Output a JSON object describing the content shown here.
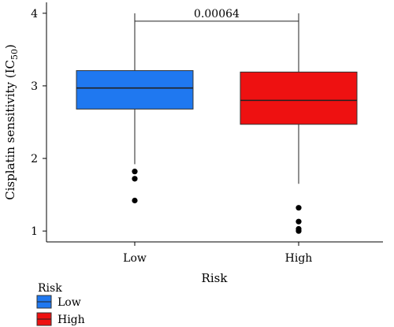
{
  "chart_data": {
    "type": "boxplot",
    "title": "",
    "xlabel": "Risk",
    "ylabel": "Cisplatin sensitivity (IC",
    "ylabel_subscript": "50",
    "ylabel_suffix": ")",
    "ylim": [
      0.85,
      4.15
    ],
    "yticks": [
      1,
      2,
      3,
      4
    ],
    "categories": [
      "Low",
      "High"
    ],
    "series": [
      {
        "name": "Low",
        "color": "#1f78f0",
        "q1": 2.68,
        "median": 2.97,
        "q3": 3.21,
        "whisker_low": 1.92,
        "whisker_high": 4.0,
        "outliers": [
          1.82,
          1.72,
          1.42
        ]
      },
      {
        "name": "High",
        "color": "#ee1111",
        "q1": 2.47,
        "median": 2.8,
        "q3": 3.19,
        "whisker_low": 1.65,
        "whisker_high": 4.0,
        "outliers": [
          1.32,
          1.13,
          1.03,
          1.0
        ]
      }
    ],
    "comparison": {
      "label": "0.00064",
      "bracket_y": 4.0
    },
    "legend": {
      "title": "Risk",
      "placement": "bottom-left",
      "items": [
        {
          "label": "Low",
          "color": "#1f78f0"
        },
        {
          "label": "High",
          "color": "#ee1111"
        }
      ]
    },
    "grid": false
  }
}
